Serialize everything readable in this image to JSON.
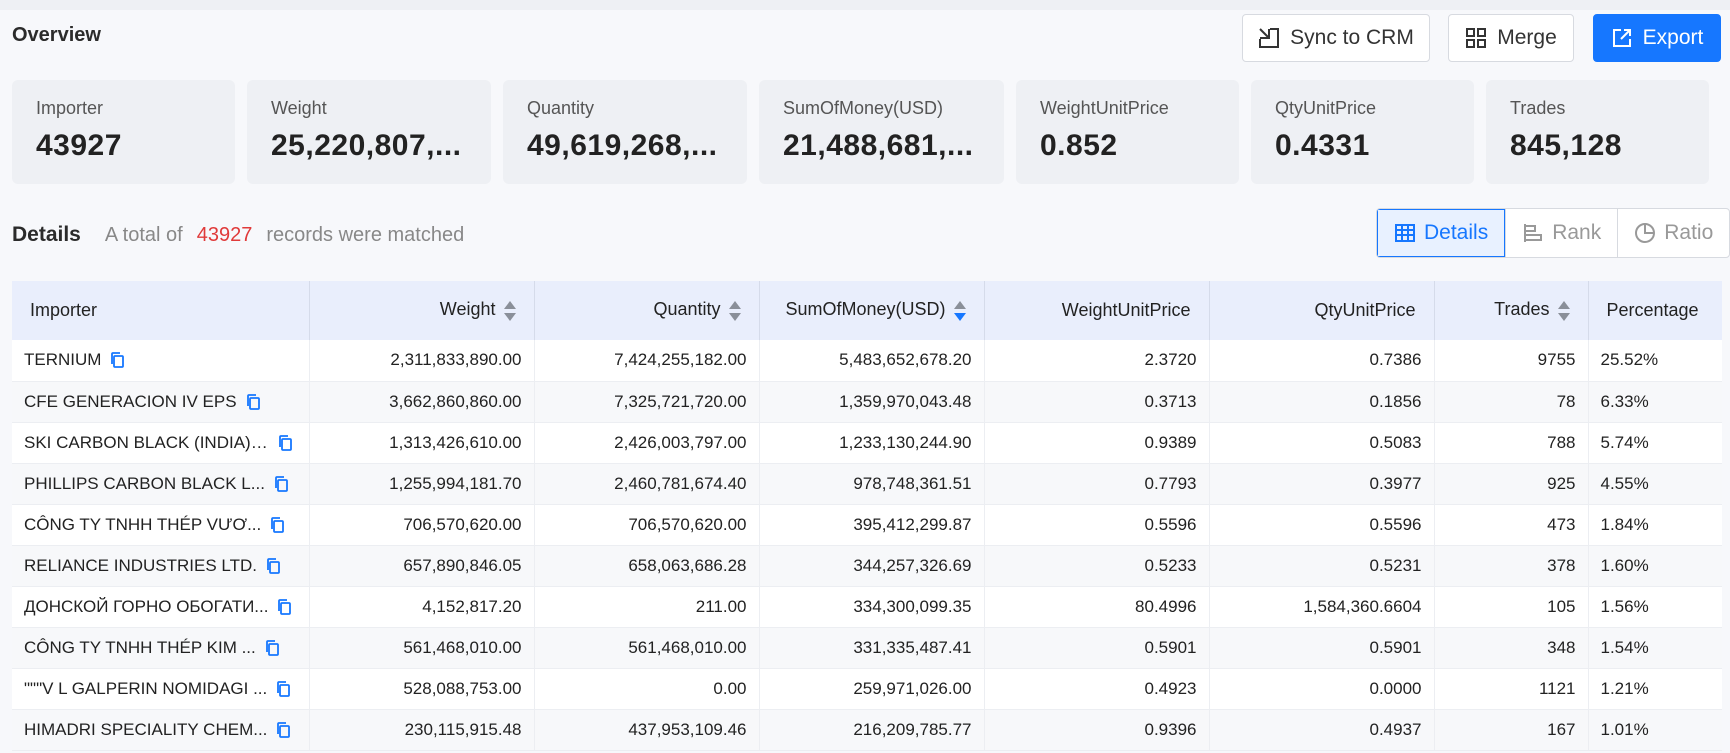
{
  "overview": {
    "title": "Overview"
  },
  "actions": {
    "sync": "Sync to CRM",
    "merge": "Merge",
    "export": "Export"
  },
  "accent_color": "#1677ff",
  "highlight_color": "#e03a3a",
  "stats": [
    {
      "label": "Importer",
      "value": "43927"
    },
    {
      "label": "Weight",
      "value": "25,220,807,..."
    },
    {
      "label": "Quantity",
      "value": "49,619,268,..."
    },
    {
      "label": "SumOfMoney(USD)",
      "value": "21,488,681,..."
    },
    {
      "label": "WeightUnitPrice",
      "value": "0.852"
    },
    {
      "label": "QtyUnitPrice",
      "value": "0.4331"
    },
    {
      "label": "Trades",
      "value": "845,128"
    }
  ],
  "details": {
    "title": "Details",
    "total_prefix": "A total of",
    "total_count": "43927",
    "total_suffix": "records were matched"
  },
  "views": {
    "details": "Details",
    "rank": "Rank",
    "ratio": "Ratio",
    "active": "Details"
  },
  "table": {
    "headers": {
      "importer": "Importer",
      "weight": "Weight",
      "quantity": "Quantity",
      "sum": "SumOfMoney(USD)",
      "wup": "WeightUnitPrice",
      "qup": "QtyUnitPrice",
      "trades": "Trades",
      "pct": "Percentage"
    },
    "sort": {
      "column": "SumOfMoney(USD)",
      "direction": "descending"
    },
    "rows": [
      {
        "importer": "TERNIUM",
        "weight": "2,311,833,890.00",
        "quantity": "7,424,255,182.00",
        "sum": "5,483,652,678.20",
        "wup": "2.3720",
        "qup": "0.7386",
        "trades": "9755",
        "pct": "25.52%"
      },
      {
        "importer": "CFE GENERACION IV EPS",
        "weight": "3,662,860,860.00",
        "quantity": "7,325,721,720.00",
        "sum": "1,359,970,043.48",
        "wup": "0.3713",
        "qup": "0.1856",
        "trades": "78",
        "pct": "6.33%"
      },
      {
        "importer": "SKI CARBON BLACK (INDIA) ...",
        "weight": "1,313,426,610.00",
        "quantity": "2,426,003,797.00",
        "sum": "1,233,130,244.90",
        "wup": "0.9389",
        "qup": "0.5083",
        "trades": "788",
        "pct": "5.74%"
      },
      {
        "importer": "PHILLIPS CARBON BLACK L...",
        "weight": "1,255,994,181.70",
        "quantity": "2,460,781,674.40",
        "sum": "978,748,361.51",
        "wup": "0.7793",
        "qup": "0.3977",
        "trades": "925",
        "pct": "4.55%"
      },
      {
        "importer": "CÔNG TY TNHH THÉP VƯƠ...",
        "weight": "706,570,620.00",
        "quantity": "706,570,620.00",
        "sum": "395,412,299.87",
        "wup": "0.5596",
        "qup": "0.5596",
        "trades": "473",
        "pct": "1.84%"
      },
      {
        "importer": "RELIANCE INDUSTRIES LTD.",
        "weight": "657,890,846.05",
        "quantity": "658,063,686.28",
        "sum": "344,257,326.69",
        "wup": "0.5233",
        "qup": "0.5231",
        "trades": "378",
        "pct": "1.60%"
      },
      {
        "importer": "ДОНСКОЙ ГОРНО ОБОГАТИ...",
        "weight": "4,152,817.20",
        "quantity": "211.00",
        "sum": "334,300,099.35",
        "wup": "80.4996",
        "qup": "1,584,360.6604",
        "trades": "105",
        "pct": "1.56%"
      },
      {
        "importer": "CÔNG TY TNHH THÉP KIM ...",
        "weight": "561,468,010.00",
        "quantity": "561,468,010.00",
        "sum": "331,335,487.41",
        "wup": "0.5901",
        "qup": "0.5901",
        "trades": "348",
        "pct": "1.54%"
      },
      {
        "importer": "\"\"\"V L GALPERIN NOMIDAGI ...",
        "weight": "528,088,753.00",
        "quantity": "0.00",
        "sum": "259,971,026.00",
        "wup": "0.4923",
        "qup": "0.0000",
        "trades": "1121",
        "pct": "1.21%"
      },
      {
        "importer": "HIMADRI SPECIALITY CHEM...",
        "weight": "230,115,915.48",
        "quantity": "437,953,109.46",
        "sum": "216,209,785.77",
        "wup": "0.9396",
        "qup": "0.4937",
        "trades": "167",
        "pct": "1.01%"
      }
    ]
  }
}
